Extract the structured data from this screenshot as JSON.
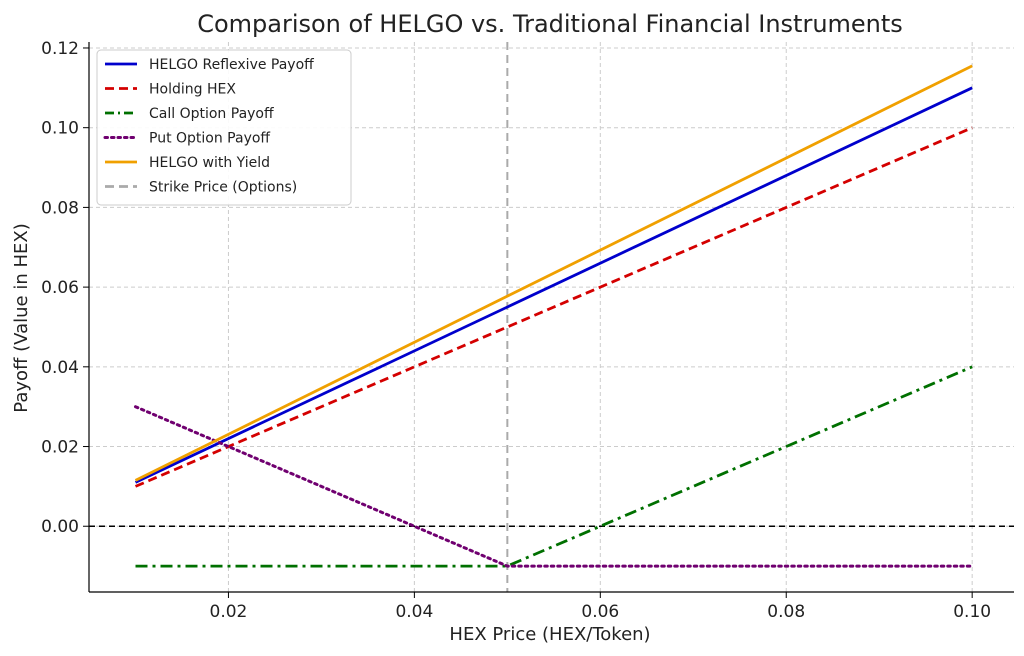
{
  "chart_data": {
    "type": "line",
    "title": "Comparison of HELGO vs. Traditional Financial Instruments",
    "xlabel": "HEX Price (HEX/Token)",
    "ylabel": "Payoff (Value in HEX)",
    "xlim": [
      0.005,
      0.1045
    ],
    "ylim": [
      -0.0165,
      0.1215
    ],
    "xticks": [
      0.02,
      0.04,
      0.06,
      0.08,
      0.1
    ],
    "xtick_labels": [
      "0.02",
      "0.04",
      "0.06",
      "0.08",
      "0.10"
    ],
    "yticks": [
      0.0,
      0.02,
      0.04,
      0.06,
      0.08,
      0.1,
      0.12
    ],
    "ytick_labels": [
      "0.00",
      "0.02",
      "0.04",
      "0.06",
      "0.08",
      "0.10",
      "0.12"
    ],
    "grid": true,
    "legend_position": "top-left",
    "series": [
      {
        "name": "HELGO Reflexive Payoff",
        "color": "#0000cc",
        "style": "solid",
        "x": [
          0.01,
          0.1
        ],
        "y": [
          0.011,
          0.11
        ]
      },
      {
        "name": "Holding HEX",
        "color": "#d40000",
        "style": "dashed",
        "x": [
          0.01,
          0.1
        ],
        "y": [
          0.01,
          0.1
        ]
      },
      {
        "name": "Call Option Payoff",
        "color": "#007000",
        "style": "dashdot",
        "x": [
          0.01,
          0.05,
          0.1
        ],
        "y": [
          -0.01,
          -0.01,
          0.04
        ]
      },
      {
        "name": "Put Option Payoff",
        "color": "#700070",
        "style": "dotted",
        "x": [
          0.01,
          0.05,
          0.1
        ],
        "y": [
          0.03,
          -0.01,
          -0.01
        ]
      },
      {
        "name": "HELGO with Yield",
        "color": "#f0a000",
        "style": "solid",
        "x": [
          0.01,
          0.1
        ],
        "y": [
          0.0115,
          0.1155
        ]
      }
    ],
    "reference_lines": [
      {
        "name": "Strike Price (Options)",
        "orientation": "vertical",
        "value": 0.05,
        "color": "#aaaaaa",
        "style": "dashed",
        "in_legend": true
      },
      {
        "orientation": "horizontal",
        "value": 0.0,
        "color": "#000000",
        "style": "dashed",
        "in_legend": false
      }
    ]
  }
}
